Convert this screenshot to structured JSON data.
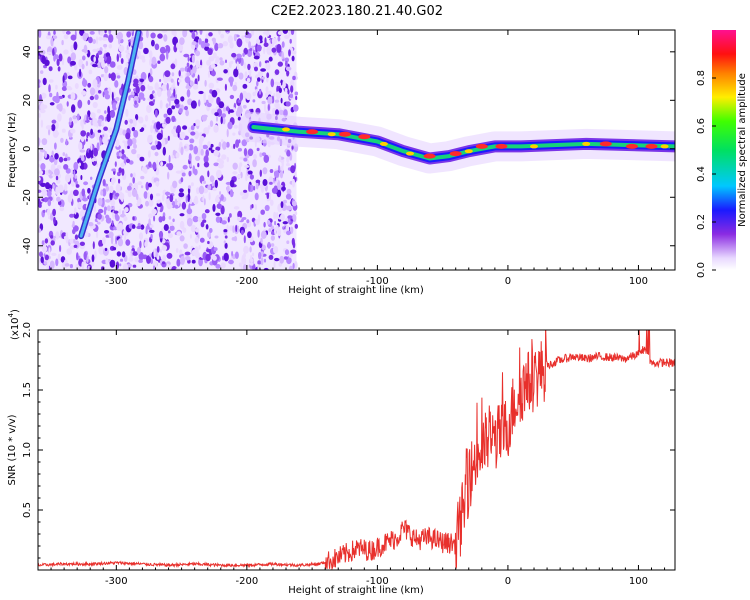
{
  "title": "C2E2.2023.180.21.40.G02",
  "colors": {
    "snr_line": "#e8302c",
    "track_fill": "#4db3f0",
    "track_edge": "#3a2ccf",
    "scatter": "#6a1ee0"
  },
  "chart_data": [
    {
      "type": "heatmap",
      "name": "spectrogram",
      "title": "C2E2.2023.180.21.40.G02",
      "xlabel": "Height of straight line (km)",
      "ylabel": "Frequency (Hz)",
      "xlim": [
        -360,
        128
      ],
      "ylim": [
        -50,
        49
      ],
      "xticks": [
        -300,
        -200,
        -100,
        0,
        100
      ],
      "yticks": [
        -40,
        -20,
        0,
        20,
        40
      ],
      "colorbar": {
        "label": "Normalized spectral amplitude",
        "range": [
          0,
          1
        ],
        "ticks": [
          "0.0",
          "0.2",
          "0.4",
          "0.6",
          "0.8"
        ],
        "tick_values": [
          0,
          0.2,
          0.4,
          0.6,
          0.8
        ],
        "colormap": "rainbow (white-violet-blue-cyan-green-yellow-red-magenta)"
      },
      "noise_region_x": [
        -360,
        -162
      ],
      "sloped_track": {
        "description": "linear feature from lower-left to upper-right",
        "points": [
          [
            -327,
            -36
          ],
          [
            -313,
            -12
          ],
          [
            -300,
            8
          ],
          [
            -291,
            28
          ],
          [
            -283,
            48
          ]
        ]
      },
      "central_track": {
        "description": "signal near 0 Hz drifting slightly negative then returning",
        "points": [
          [
            -195,
            9
          ],
          [
            -160,
            7
          ],
          [
            -130,
            6
          ],
          [
            -100,
            3
          ],
          [
            -80,
            -1
          ],
          [
            -60,
            -4
          ],
          [
            -45,
            -3
          ],
          [
            -30,
            -1
          ],
          [
            -10,
            1
          ],
          [
            10,
            1
          ],
          [
            60,
            2
          ],
          [
            128,
            1
          ]
        ]
      }
    },
    {
      "type": "line",
      "name": "snr",
      "xlabel": "Height of straight line (km)",
      "ylabel": "SNR (10 * v/v)",
      "y_multiplier_label": "(x10",
      "y_multiplier_exp": "4",
      "y_multiplier_close": ")",
      "xlim": [
        -360,
        128
      ],
      "ylim": [
        0,
        2.0
      ],
      "xticks": [
        -300,
        -200,
        -100,
        0,
        100
      ],
      "yticks": [
        "0.5",
        "1.0",
        "1.5",
        "2.0"
      ],
      "ytick_values": [
        0.5,
        1.0,
        1.5,
        2.0
      ],
      "series": [
        {
          "x": [
            -360,
            -340,
            -320,
            -300,
            -280,
            -260,
            -240,
            -220,
            -200,
            -180,
            -160,
            -145,
            -135,
            -125,
            -115,
            -105,
            -95,
            -85,
            -80,
            -75,
            -70,
            -60,
            -50,
            -40,
            -35,
            -30,
            -25,
            -20,
            -15,
            -10,
            -5,
            0,
            5,
            10,
            15,
            20,
            30,
            40,
            50,
            60,
            70,
            80,
            90,
            100,
            105,
            110,
            120,
            128
          ],
          "y": [
            0.04,
            0.05,
            0.05,
            0.06,
            0.05,
            0.04,
            0.05,
            0.04,
            0.04,
            0.05,
            0.04,
            0.05,
            0.08,
            0.13,
            0.18,
            0.16,
            0.22,
            0.27,
            0.35,
            0.3,
            0.25,
            0.27,
            0.23,
            0.22,
            0.45,
            0.75,
            0.92,
            1.0,
            1.08,
            1.1,
            1.12,
            1.2,
            1.4,
            1.5,
            1.55,
            1.6,
            1.7,
            1.75,
            1.78,
            1.76,
            1.78,
            1.77,
            1.76,
            1.8,
            1.85,
            1.72,
            1.73,
            1.72
          ]
        }
      ]
    }
  ]
}
